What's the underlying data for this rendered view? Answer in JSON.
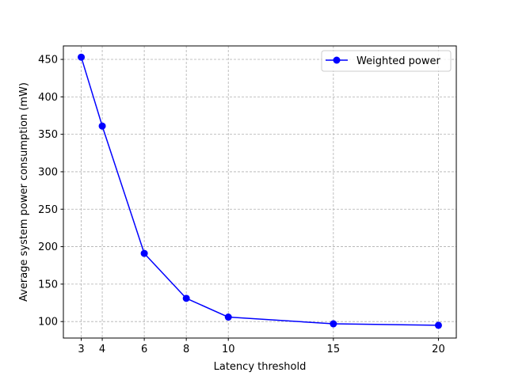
{
  "chart_data": {
    "type": "line",
    "title": "",
    "xlabel": "Latency threshold",
    "ylabel": "Average system power consumption (mW)",
    "x": [
      3,
      4,
      6,
      8,
      10,
      15,
      20
    ],
    "xticks": [
      3,
      4,
      6,
      8,
      10,
      15,
      20
    ],
    "yticks": [
      100,
      150,
      200,
      250,
      300,
      350,
      400,
      450
    ],
    "xlim": [
      2.15,
      20.85
    ],
    "ylim": [
      78,
      468
    ],
    "grid": true,
    "grid_style": "dashed",
    "legend_position": "top-right",
    "series": [
      {
        "name": "Weighted power",
        "color": "#0000ff",
        "marker": "circle",
        "values": [
          453,
          361,
          191,
          131,
          106,
          97,
          95
        ]
      }
    ]
  }
}
